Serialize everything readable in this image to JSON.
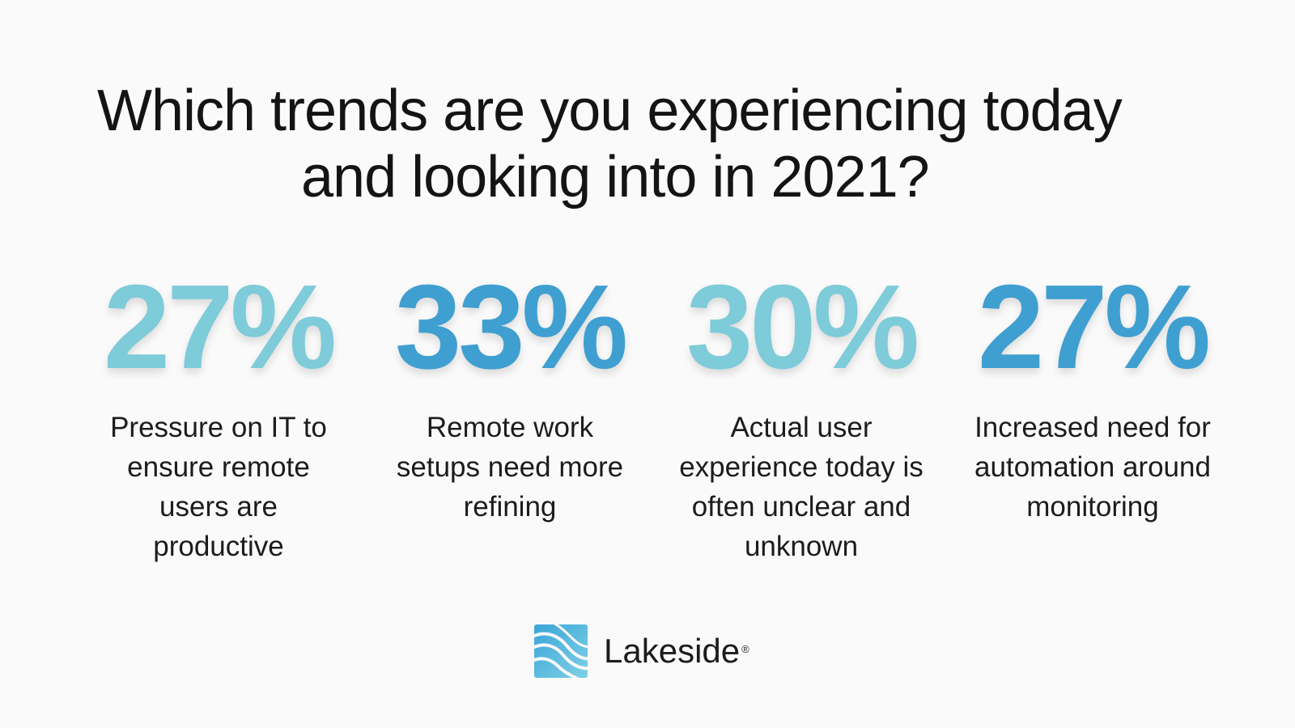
{
  "title": {
    "line1": "Which trends are you experiencing today",
    "line2": "and looking into in 2021?"
  },
  "stats": [
    {
      "value": "27%",
      "label": "Pressure on IT to ensure remote users are productive",
      "color": "#7ecbd9"
    },
    {
      "value": "33%",
      "label": "Remote work setups need more refining",
      "color": "#3f9fd1"
    },
    {
      "value": "30%",
      "label": "Actual user experience today is often unclear and unknown",
      "color": "#7ecbd9"
    },
    {
      "value": "27%",
      "label": "Increased need for automation around monitoring",
      "color": "#3f9fd1"
    }
  ],
  "logo": {
    "wordmark": "Lakeside",
    "registered": "®",
    "icon": "lakeside-wave-logo-icon",
    "colors": [
      "#3aa6d9",
      "#7fd0e6"
    ]
  }
}
